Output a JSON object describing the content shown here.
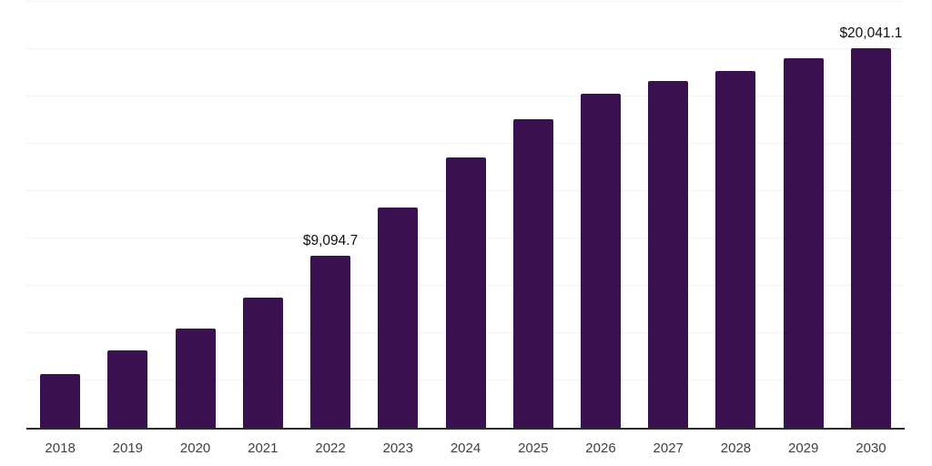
{
  "chart": {
    "bar_color": "#3a104f",
    "axis_color": "#2d2d2d",
    "grid_color": "#f2f2f2",
    "data_label_color": "#111111",
    "tick_label_color": "#404040",
    "background_color": "#ffffff"
  },
  "chart_data": {
    "type": "bar",
    "title": "",
    "xlabel": "",
    "ylabel": "",
    "categories": [
      "2018",
      "2019",
      "2020",
      "2021",
      "2022",
      "2023",
      "2024",
      "2025",
      "2026",
      "2027",
      "2028",
      "2029",
      "2030"
    ],
    "values": [
      2830,
      4095,
      5265,
      6860,
      9094.7,
      11650,
      14275,
      16295,
      17645,
      18335,
      18845,
      19505,
      20041.1
    ],
    "data_labels": [
      "",
      "",
      "",
      "",
      "$9,094.7",
      "",
      "",
      "",
      "",
      "",
      "",
      "",
      "$20,041.1"
    ],
    "ylim": [
      0,
      22500
    ],
    "grid_step": 2500,
    "grid": true,
    "legend": false,
    "y_axis_labels_visible": false
  }
}
